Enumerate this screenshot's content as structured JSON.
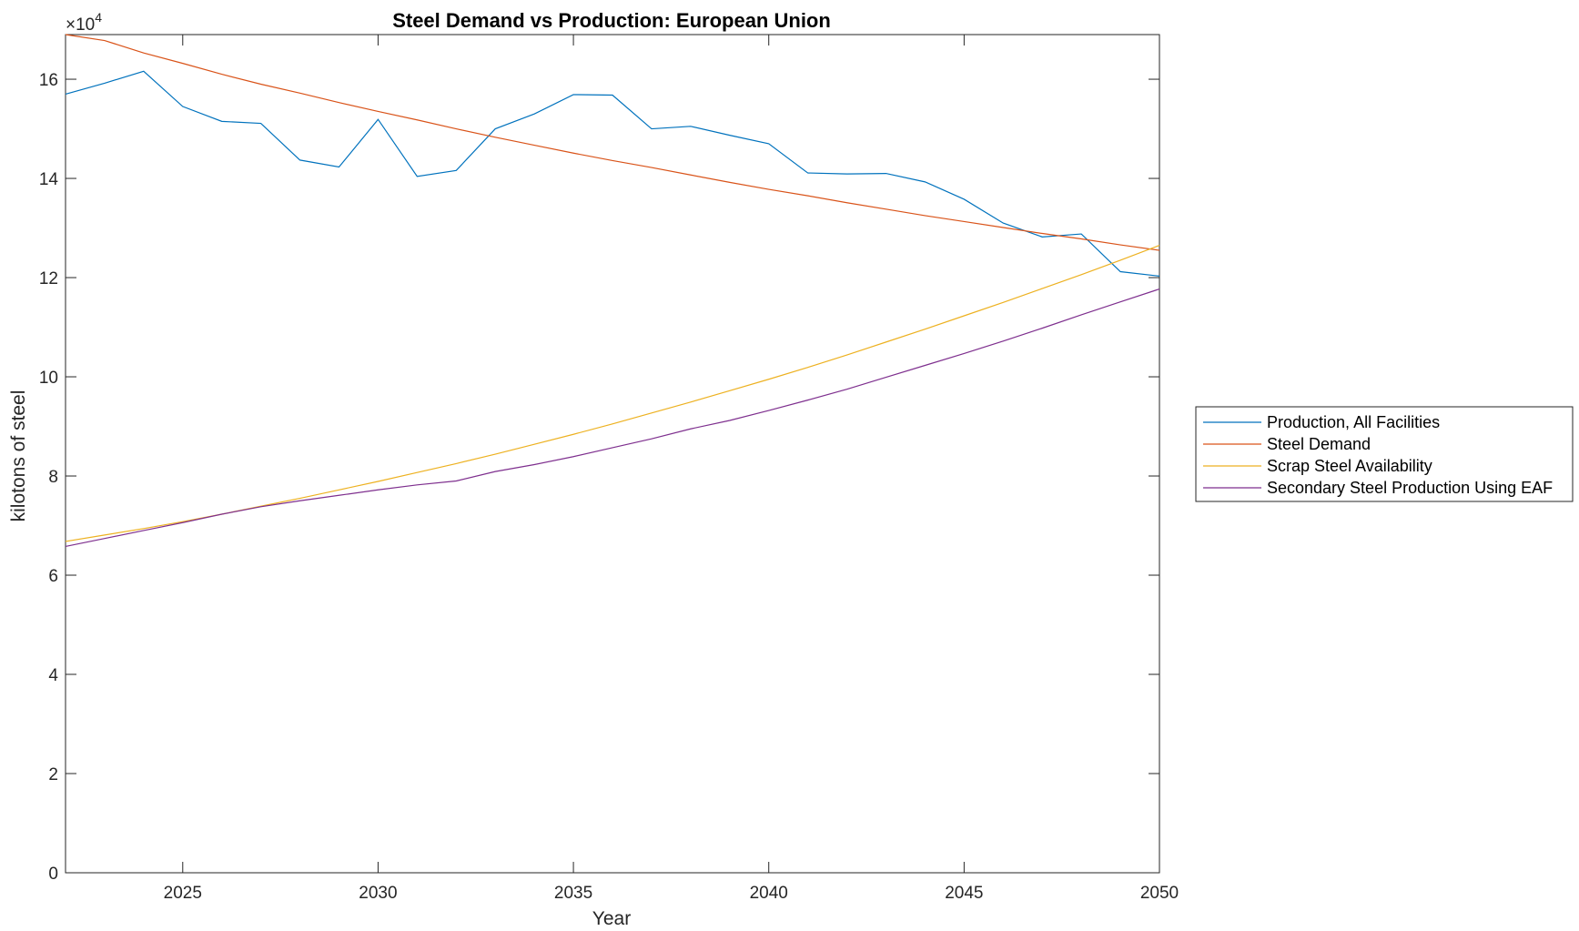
{
  "chart_data": {
    "type": "line",
    "title": "Steel Demand vs Production: European Union",
    "xlabel": "Year",
    "ylabel": "kilotons of steel",
    "y_exponent_label": "×10",
    "y_exponent_power": "4",
    "y_multiplier": 10000,
    "xlim": [
      2022,
      2050
    ],
    "ylim": [
      0,
      169000
    ],
    "x_ticks": [
      2025,
      2030,
      2035,
      2040,
      2045,
      2050
    ],
    "y_ticks": [
      0,
      20000,
      40000,
      60000,
      80000,
      100000,
      120000,
      140000,
      160000
    ],
    "y_tick_labels": [
      "0",
      "2",
      "4",
      "6",
      "8",
      "10",
      "12",
      "14",
      "16"
    ],
    "x_tick_labels": [
      "2025",
      "2030",
      "2035",
      "2040",
      "2045",
      "2050"
    ],
    "grid": false,
    "legend_placement": "outside-right",
    "x": [
      2022,
      2023,
      2024,
      2025,
      2026,
      2027,
      2028,
      2029,
      2030,
      2031,
      2032,
      2033,
      2034,
      2035,
      2036,
      2037,
      2038,
      2039,
      2040,
      2041,
      2042,
      2043,
      2044,
      2045,
      2046,
      2047,
      2048,
      2049,
      2050
    ],
    "series": [
      {
        "name": "Production, All Facilities",
        "color": "#0072BD",
        "values": [
          157000,
          159200,
          161600,
          154500,
          151500,
          151100,
          143700,
          142300,
          151900,
          140400,
          141600,
          150000,
          153000,
          156900,
          156800,
          150000,
          150500,
          148700,
          147000,
          141100,
          140900,
          141000,
          139300,
          135800,
          131000,
          128200,
          128800,
          121200,
          120300
        ]
      },
      {
        "name": "Steel Demand",
        "color": "#D95319",
        "values": [
          169000,
          167800,
          165300,
          163200,
          161000,
          159000,
          157200,
          155300,
          153500,
          151800,
          150000,
          148300,
          146700,
          145100,
          143600,
          142200,
          140700,
          139200,
          137800,
          136500,
          135100,
          133800,
          132500,
          131300,
          130100,
          128900,
          127800,
          126600,
          125500
        ]
      },
      {
        "name": "Scrap Steel Availability",
        "color": "#EDB120",
        "values": [
          66800,
          68100,
          69400,
          70800,
          72300,
          73900,
          75500,
          77200,
          78900,
          80700,
          82500,
          84400,
          86400,
          88400,
          90500,
          92700,
          94900,
          97200,
          99500,
          101900,
          104400,
          107000,
          109600,
          112300,
          115000,
          117800,
          120600,
          123500,
          126500
        ]
      },
      {
        "name": "Secondary Steel Production Using EAF",
        "color": "#7E2F8E",
        "values": [
          65800,
          67400,
          69000,
          70600,
          72300,
          73800,
          75000,
          76100,
          77200,
          78200,
          79000,
          80900,
          82300,
          83900,
          85700,
          87500,
          89500,
          91200,
          93200,
          95300,
          97500,
          99900,
          102300,
          104700,
          107200,
          109800,
          112500,
          115100,
          117700
        ]
      }
    ]
  }
}
